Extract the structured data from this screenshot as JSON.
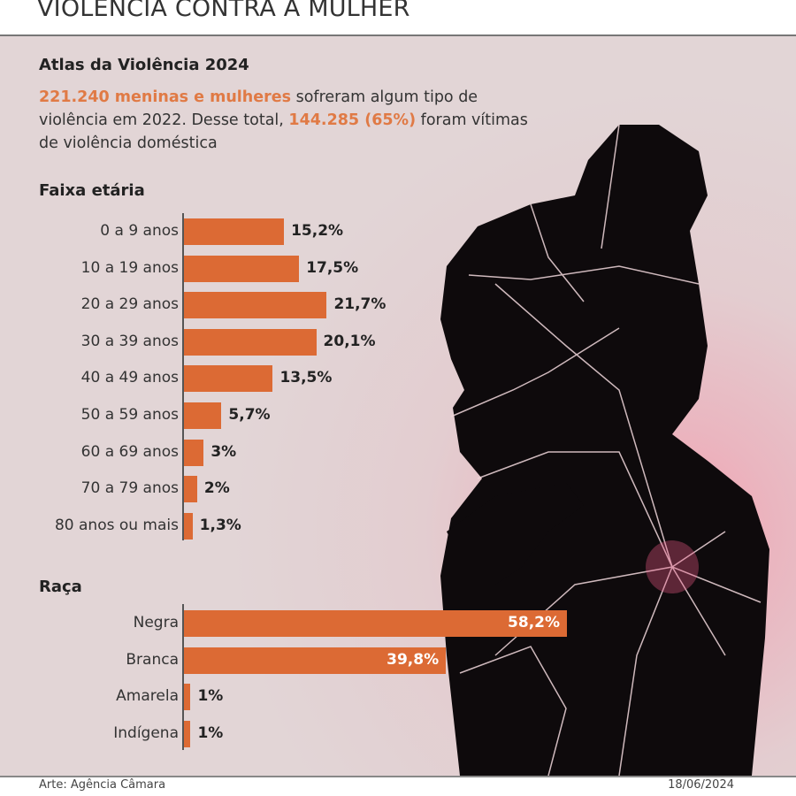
{
  "header": {
    "title": "VIOLÊNCIA CONTRA A MULHER"
  },
  "subtitle": "Atlas da Violência 2024",
  "intro": {
    "highlight1": "221.240 meninas e mulheres",
    "text1": " sofreram algum tipo de violência em 2022. Desse total, ",
    "highlight2": "144.285 (65%)",
    "text2": " foram vítimas de violência doméstica"
  },
  "colors": {
    "bar": "#dc6a34",
    "highlight": "#e07a45",
    "background": "#e2d5d6"
  },
  "chart_data": [
    {
      "type": "bar",
      "orientation": "horizontal",
      "title": "Faixa etária",
      "categories": [
        "0 a 9 anos",
        "10 a 19 anos",
        "20 a 29 anos",
        "30 a 39 anos",
        "40 a 49 anos",
        "50 a 59 anos",
        "60 a 69 anos",
        "70 a 79 anos",
        "80 anos ou mais"
      ],
      "values": [
        15.2,
        17.5,
        21.7,
        20.1,
        13.5,
        5.7,
        3,
        2,
        1.3
      ],
      "labels": [
        "15,2%",
        "17,5%",
        "21,7%",
        "20,1%",
        "13,5%",
        "5,7%",
        "3%",
        "2%",
        "1,3%"
      ],
      "unit": "%"
    },
    {
      "type": "bar",
      "orientation": "horizontal",
      "title": "Raça",
      "categories": [
        "Negra",
        "Branca",
        "Amarela",
        "Indígena"
      ],
      "values": [
        58.2,
        39.8,
        1,
        1
      ],
      "labels": [
        "58,2%",
        "39,8%",
        "1%",
        "1%"
      ],
      "unit": "%"
    }
  ],
  "footer": {
    "credit": "Arte: Agência Câmara",
    "date": "18/06/2024"
  }
}
